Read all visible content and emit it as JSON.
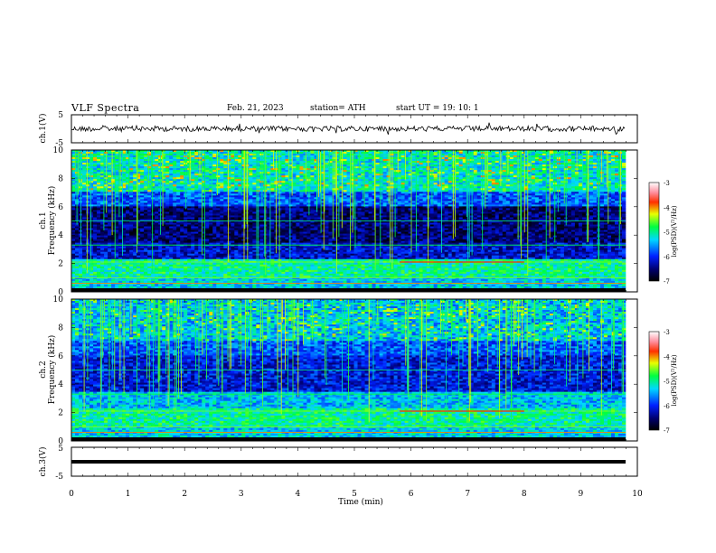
{
  "header": {
    "title": "VLF  Spectra",
    "date": "Feb. 21, 2023",
    "station": "station= ATH",
    "start": "start  UT  =    19: 10: 1"
  },
  "chart_data": [
    {
      "type": "line",
      "name": "waveform-ch1",
      "ylabel": "ch.1(V)",
      "ylim": [
        -5,
        5
      ],
      "yticks": [
        "5",
        "-5"
      ],
      "xlim": [
        0,
        10
      ]
    },
    {
      "type": "heatmap",
      "name": "spectrogram-ch1",
      "ylabel_top": "ch.1",
      "ylabel": "Frequency (kHz)",
      "ylim": [
        0,
        10
      ],
      "yticks": [
        "10",
        "8",
        "6",
        "4",
        "2",
        "0"
      ],
      "colorbar": {
        "label": "log(PSD)(V²/Hz)",
        "ticks": [
          "-3",
          "-4",
          "-5",
          "-6",
          "-7"
        ],
        "range": [
          -7,
          -3
        ]
      }
    },
    {
      "type": "heatmap",
      "name": "spectrogram-ch2",
      "ylabel_top": "ch.2",
      "ylabel": "Frequency (kHz)",
      "ylim": [
        0,
        10
      ],
      "yticks": [
        "10",
        "8",
        "6",
        "4",
        "2",
        "0"
      ],
      "colorbar": {
        "label": "log(PSD)(V²/Hz)",
        "ticks": [
          "-3",
          "-4",
          "-5",
          "-6",
          "-7"
        ],
        "range": [
          -7,
          -3
        ]
      }
    },
    {
      "type": "line",
      "name": "waveform-ch3",
      "ylabel": "ch.3(V)",
      "ylim": [
        -5,
        5
      ],
      "yticks": [
        "5",
        "-5"
      ],
      "xlim": [
        0,
        10
      ],
      "xlabel": "Time  (min)",
      "xticks": [
        "0",
        "1",
        "2",
        "3",
        "4",
        "5",
        "6",
        "7",
        "8",
        "9",
        "10"
      ]
    }
  ]
}
